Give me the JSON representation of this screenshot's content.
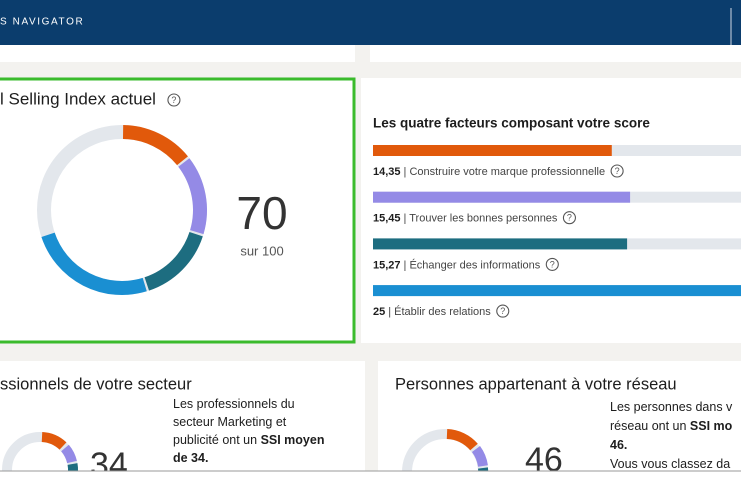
{
  "header": {
    "title": "S NAVIGATOR"
  },
  "help": "?",
  "ssi": {
    "title": "l Selling Index actuel",
    "score": 70,
    "total": {
      "value": 100,
      "label": "sur 100"
    }
  },
  "factors": {
    "title": "Les quatre facteurs composant votre score",
    "items": [
      {
        "value": 14.35,
        "value_label": "14,35",
        "label": "| Construire votre marque professionnelle",
        "color": "#e1590b"
      },
      {
        "value": 15.45,
        "value_label": "15,45",
        "label": "| Trouver les bonnes personnes",
        "color": "#948ae6"
      },
      {
        "value": 15.27,
        "value_label": "15,27",
        "label": "| Échanger des informations",
        "color": "#1d6d80"
      },
      {
        "value": 25,
        "label": "| Établir des relations",
        "color": "#1a8fd2"
      }
    ]
  },
  "industry": {
    "title": "ssionnels de votre secteur",
    "score": 34,
    "lines": [
      [
        {
          "text": "Les professionnels du"
        }
      ],
      [
        {
          "text": "secteur Marketing et"
        }
      ],
      [
        {
          "text": "publicité ont un "
        },
        {
          "text": "SSI moyen",
          "bold": true
        }
      ],
      [
        {
          "text": "de 34.",
          "bold": true
        }
      ]
    ]
  },
  "network": {
    "title": "Personnes appartenant à votre réseau",
    "score": 46,
    "lines": [
      [
        {
          "text": "Les personnes dans v"
        }
      ],
      [
        {
          "text": "réseau ont un "
        },
        {
          "text": "SSI mo",
          "bold": true
        }
      ],
      [
        {
          "text": "46.",
          "bold": true
        }
      ],
      [
        {
          "text": "Vous vous classez da"
        }
      ]
    ]
  }
}
